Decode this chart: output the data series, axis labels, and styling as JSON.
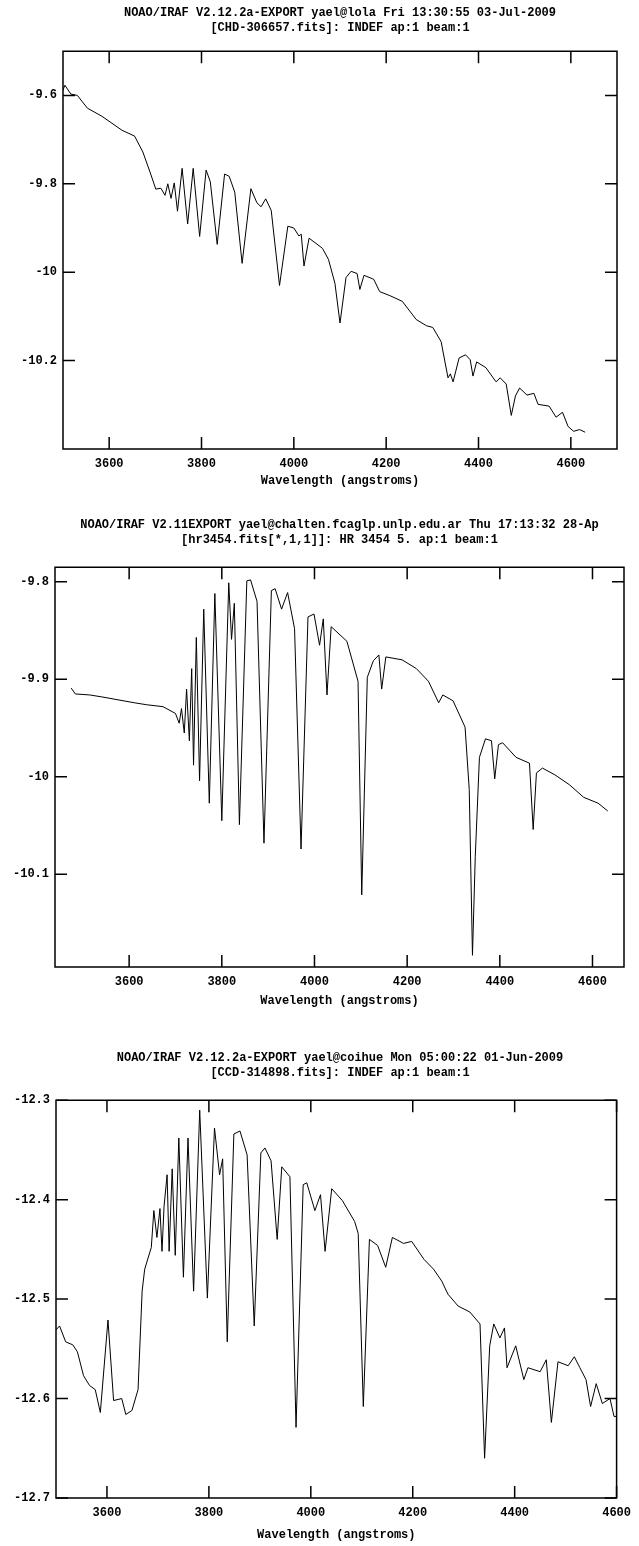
{
  "chart_data": [
    {
      "type": "line",
      "title": "NOAO/IRAF V2.12.2a-EXPORT yael@lola Fri 13:30:55 03-Jul-2009",
      "subtitle": "[CHD-306657.fits]:  INDEF ap:1 beam:1",
      "xlabel": "Wavelength (angstroms)",
      "xlim": [
        3500,
        4700
      ],
      "ylim": [
        -10.4,
        -9.5
      ],
      "xticks": [
        3600,
        3800,
        4000,
        4200,
        4400,
        4600
      ],
      "yticks": [
        -9.6,
        -9.8,
        -10,
        -10.2
      ],
      "series": [
        {
          "color": "#000000",
          "x": [
            3500,
            3504,
            3517,
            3531,
            3553,
            3584,
            3628,
            3655,
            3673,
            3690,
            3701,
            3712,
            3721,
            3727,
            3734,
            3741,
            3748,
            3758,
            3770,
            3782,
            3796,
            3810,
            3819,
            3834,
            3850,
            3860,
            3872,
            3888,
            3907,
            3920,
            3929,
            3939,
            3951,
            3969,
            3987,
            4000,
            4011,
            4016,
            4022,
            4033,
            4062,
            4075,
            4089,
            4100,
            4113,
            4124,
            4137,
            4143,
            4152,
            4173,
            4186,
            4208,
            4235,
            4265,
            4287,
            4301,
            4319,
            4334,
            4339,
            4345,
            4358,
            4372,
            4382,
            4388,
            4396,
            4416,
            4438,
            4447,
            4460,
            4471,
            4480,
            4489,
            4505,
            4520,
            4529,
            4553,
            4568,
            4582,
            4594,
            4606,
            4619,
            4631
          ],
          "values": [
            -9.588,
            -9.577,
            -9.597,
            -9.6,
            -9.629,
            -9.647,
            -9.679,
            -9.692,
            -9.728,
            -9.778,
            -9.812,
            -9.81,
            -9.826,
            -9.8,
            -9.833,
            -9.798,
            -9.862,
            -9.765,
            -9.891,
            -9.765,
            -9.919,
            -9.769,
            -9.795,
            -9.937,
            -9.778,
            -9.783,
            -9.819,
            -9.98,
            -9.811,
            -9.843,
            -9.852,
            -9.834,
            -9.86,
            -10.03,
            -9.896,
            -9.9,
            -9.918,
            -9.914,
            -9.986,
            -9.923,
            -9.946,
            -9.971,
            -10.025,
            -10.115,
            -10.012,
            -9.998,
            -10.003,
            -10.039,
            -10.007,
            -10.016,
            -10.044,
            -10.053,
            -10.066,
            -10.107,
            -10.121,
            -10.125,
            -10.157,
            -10.239,
            -10.23,
            -10.248,
            -10.194,
            -10.187,
            -10.198,
            -10.235,
            -10.203,
            -10.216,
            -10.248,
            -10.239,
            -10.253,
            -10.324,
            -10.28,
            -10.262,
            -10.278,
            -10.274,
            -10.299,
            -10.303,
            -10.328,
            -10.317,
            -10.349,
            -10.36,
            -10.356,
            -10.362
          ]
        }
      ]
    },
    {
      "type": "line",
      "title": "NOAO/IRAF V2.11EXPORT yael@chalten.fcaglp.unlp.edu.ar Thu 17:13:32 28-Ap",
      "subtitle": "[hr3454.fits[*,1,1]]: HR 3454 5. ap:1 beam:1",
      "xlabel": "Wavelength (angstroms)",
      "xlim": [
        3440,
        4668
      ],
      "ylim": [
        -10.195,
        -9.785
      ],
      "xticks": [
        3600,
        3800,
        4000,
        4200,
        4400,
        4600
      ],
      "yticks": [
        -9.8,
        -9.9,
        -10,
        -10.1
      ],
      "series": [
        {
          "color": "#000000",
          "x": [
            3475,
            3484,
            3515,
            3541,
            3576,
            3611,
            3637,
            3673,
            3700,
            3708,
            3713,
            3719,
            3724,
            3730,
            3735,
            3739,
            3745,
            3752,
            3761,
            3773,
            3785,
            3800,
            3815,
            3821,
            3827,
            3838,
            3854,
            3862,
            3876,
            3891,
            3907,
            3915,
            3929,
            3942,
            3957,
            3971,
            3986,
            3999,
            4011,
            4019,
            4027,
            4036,
            4070,
            4094,
            4102,
            4114,
            4127,
            4139,
            4145,
            4154,
            4189,
            4220,
            4246,
            4268,
            4277,
            4299,
            4325,
            4334,
            4341,
            4347,
            4356,
            4369,
            4382,
            4389,
            4397,
            4406,
            4435,
            4464,
            4472,
            4479,
            4492,
            4519,
            4550,
            4581,
            4612,
            4633
          ],
          "values": [
            -9.909,
            -9.915,
            -9.916,
            -9.918,
            -9.921,
            -9.924,
            -9.926,
            -9.928,
            -9.935,
            -9.945,
            -9.93,
            -9.955,
            -9.91,
            -9.963,
            -9.889,
            -9.988,
            -9.857,
            -10.004,
            -9.828,
            -10.027,
            -9.812,
            -10.045,
            -9.801,
            -9.859,
            -9.822,
            -10.049,
            -9.799,
            -9.798,
            -9.82,
            -10.068,
            -9.809,
            -9.807,
            -9.828,
            -9.811,
            -9.848,
            -10.074,
            -9.836,
            -9.833,
            -9.865,
            -9.838,
            -9.916,
            -9.846,
            -9.861,
            -9.902,
            -10.121,
            -9.898,
            -9.881,
            -9.875,
            -9.91,
            -9.877,
            -9.88,
            -9.889,
            -9.902,
            -9.924,
            -9.916,
            -9.922,
            -9.949,
            -10.013,
            -10.183,
            -10.082,
            -9.98,
            -9.961,
            -9.963,
            -10.002,
            -9.967,
            -9.965,
            -9.98,
            -9.986,
            -10.054,
            -9.996,
            -9.991,
            -9.998,
            -10.008,
            -10.021,
            -10.027,
            -10.035
          ]
        }
      ]
    },
    {
      "type": "line",
      "title": "NOAO/IRAF V2.12.2a-EXPORT yael@coihue Mon 05:00:22 01-Jun-2009",
      "subtitle": "[CCD-314898.fits]:  INDEF ap:1 beam:1",
      "xlabel": "Wavelength (angstroms)",
      "xlim": [
        3500,
        4600
      ],
      "ylim": [
        -12.7,
        -12.3
      ],
      "xticks": [
        3600,
        3800,
        4000,
        4200,
        4400,
        4600
      ],
      "yticks": [
        -12.3,
        -12.4,
        -12.5,
        -12.6,
        -12.7
      ],
      "series": [
        {
          "color": "#000000",
          "x": [
            3500,
            3507,
            3519,
            3533,
            3542,
            3554,
            3566,
            3577,
            3587,
            3602,
            3613,
            3629,
            3637,
            3649,
            3661,
            3669,
            3674,
            3687,
            3692,
            3698,
            3704,
            3708,
            3712,
            3718,
            3722,
            3728,
            3734,
            3741,
            3750,
            3759,
            3770,
            3782,
            3797,
            3811,
            3821,
            3827,
            3836,
            3849,
            3861,
            3875,
            3889,
            3902,
            3910,
            3922,
            3934,
            3943,
            3959,
            3971,
            3985,
            3992,
            4008,
            4019,
            4028,
            4041,
            4062,
            4086,
            4093,
            4103,
            4115,
            4131,
            4147,
            4160,
            4182,
            4198,
            4222,
            4241,
            4257,
            4269,
            4289,
            4312,
            4332,
            4341,
            4351,
            4359,
            4371,
            4380,
            4385,
            4402,
            4418,
            4426,
            4450,
            4462,
            4472,
            4485,
            4505,
            4517,
            4528,
            4540,
            4549,
            4560,
            4572,
            4587,
            4595,
            4600
          ],
          "values": [
            -12.531,
            -12.527,
            -12.543,
            -12.546,
            -12.553,
            -12.577,
            -12.587,
            -12.591,
            -12.614,
            -12.521,
            -12.602,
            -12.6,
            -12.616,
            -12.612,
            -12.591,
            -12.492,
            -12.47,
            -12.448,
            -12.411,
            -12.438,
            -12.409,
            -12.452,
            -12.407,
            -12.375,
            -12.452,
            -12.369,
            -12.456,
            -12.338,
            -12.478,
            -12.338,
            -12.492,
            -12.31,
            -12.499,
            -12.328,
            -12.375,
            -12.359,
            -12.543,
            -12.334,
            -12.331,
            -12.355,
            -12.527,
            -12.353,
            -12.348,
            -12.361,
            -12.44,
            -12.367,
            -12.377,
            -12.629,
            -12.385,
            -12.383,
            -12.411,
            -12.395,
            -12.452,
            -12.389,
            -12.401,
            -12.422,
            -12.434,
            -12.608,
            -12.44,
            -12.446,
            -12.468,
            -12.438,
            -12.444,
            -12.442,
            -12.46,
            -12.47,
            -12.482,
            -12.495,
            -12.507,
            -12.513,
            -12.525,
            -12.66,
            -12.547,
            -12.525,
            -12.539,
            -12.529,
            -12.569,
            -12.547,
            -12.581,
            -12.569,
            -12.573,
            -12.561,
            -12.624,
            -12.563,
            -12.567,
            -12.558,
            -12.569,
            -12.581,
            -12.608,
            -12.585,
            -12.605,
            -12.6,
            -12.618,
            -12.618
          ]
        }
      ]
    }
  ]
}
